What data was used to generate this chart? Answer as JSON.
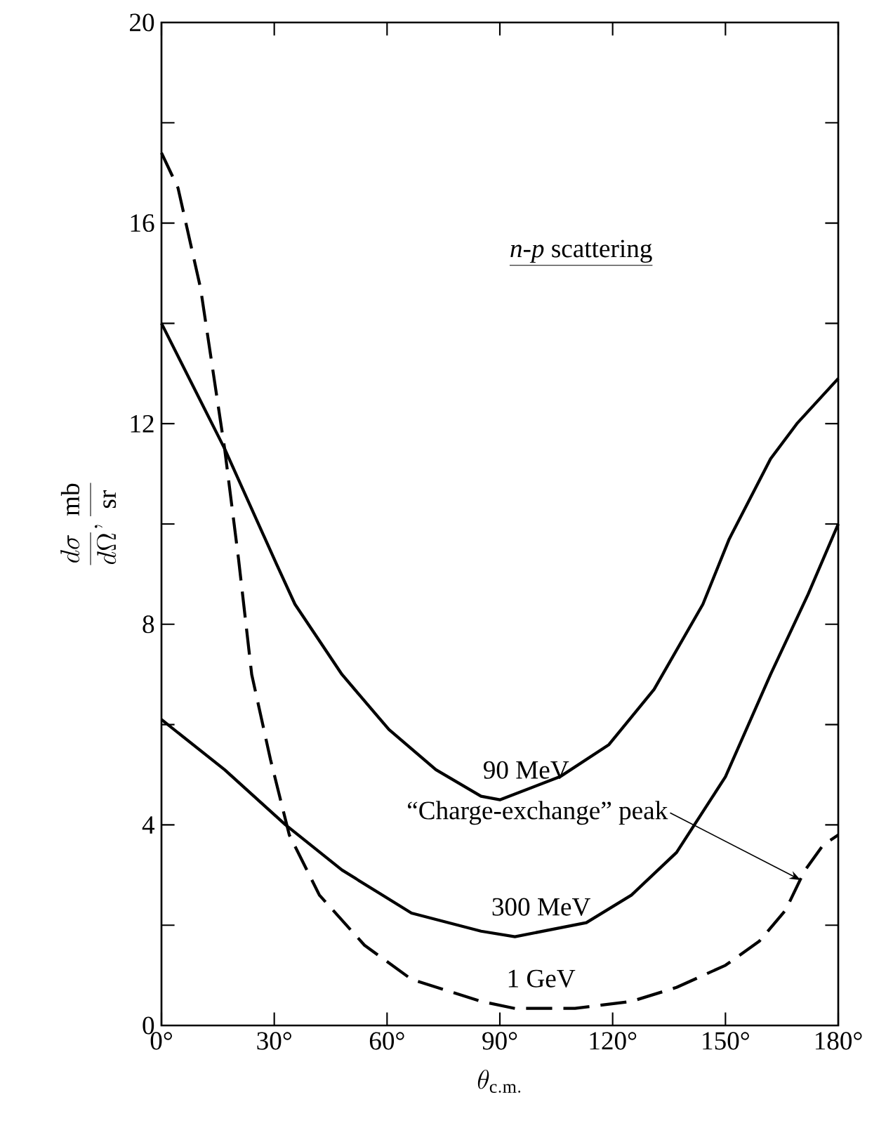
{
  "chart_data": {
    "type": "line",
    "title": "*n-p* scattering",
    "xlabel": "\\theta_{\\mathrm{c.m.}}",
    "ylabel": "\\frac{d\\sigma}{d\\Omega}, \\frac{\\mathrm{mb}}{\\mathrm{sr}}",
    "xlim": [
      0,
      180
    ],
    "ylim": [
      0,
      20
    ],
    "xticks": [
      {
        "value": 0,
        "label": "0°"
      },
      {
        "value": 30,
        "label": "30°"
      },
      {
        "value": 60,
        "label": "60°"
      },
      {
        "value": 90,
        "label": "90°"
      },
      {
        "value": 120,
        "label": "120°"
      },
      {
        "value": 150,
        "label": "150°"
      },
      {
        "value": 180,
        "label": "180°"
      }
    ],
    "yticks": [
      0,
      {
        "value": 2,
        "label": null
      },
      4,
      {
        "value": 6,
        "label": null
      },
      8,
      {
        "value": 10,
        "label": null
      },
      12,
      {
        "value": 14,
        "label": null
      },
      16,
      {
        "value": 18,
        "label": null
      },
      20
    ],
    "series": [
      {
        "name": "90 MeV",
        "color": "#000000",
        "line_style": "solid",
        "x": [
          0,
          16.8,
          27,
          30.6,
          35.5,
          48,
          60.5,
          73,
          85,
          90,
          106,
          119,
          131,
          144,
          151,
          162,
          169,
          180
        ],
        "values": [
          14.0,
          11.5,
          9.8,
          9.2,
          8.4,
          7.0,
          5.9,
          5.1,
          4.57,
          4.5,
          4.96,
          5.6,
          6.7,
          8.4,
          9.7,
          11.3,
          12.0,
          12.9
        ]
      },
      {
        "name": "300 MeV",
        "color": "#000000",
        "line_style": "solid",
        "x": [
          0,
          16.8,
          33,
          48,
          66.5,
          85,
          94,
          113,
          125,
          137,
          150,
          162,
          172,
          180
        ],
        "values": [
          6.1,
          5.1,
          4.0,
          3.1,
          2.24,
          1.88,
          1.77,
          2.05,
          2.6,
          3.45,
          4.96,
          7.0,
          8.6,
          10.0
        ]
      },
      {
        "name": "1 GeV",
        "color": "#000000",
        "line_style": "dashed",
        "x": [
          0,
          4.4,
          10.4,
          16.8,
          20.5,
          24,
          29,
          34,
          42,
          54,
          66.5,
          85,
          94,
          110,
          125,
          137,
          150,
          159,
          166,
          171,
          176,
          180
        ],
        "values": [
          17.4,
          16.7,
          14.7,
          11.5,
          9.3,
          7.0,
          5.3,
          3.8,
          2.6,
          1.6,
          0.92,
          0.48,
          0.34,
          0.34,
          0.48,
          0.76,
          1.2,
          1.68,
          2.3,
          3.08,
          3.6,
          3.8
        ]
      }
    ],
    "annotations": [
      {
        "text": "“Charge-exchange” peak",
        "x": 170,
        "y": 2.9
      }
    ],
    "grid": false,
    "marker": "none"
  }
}
